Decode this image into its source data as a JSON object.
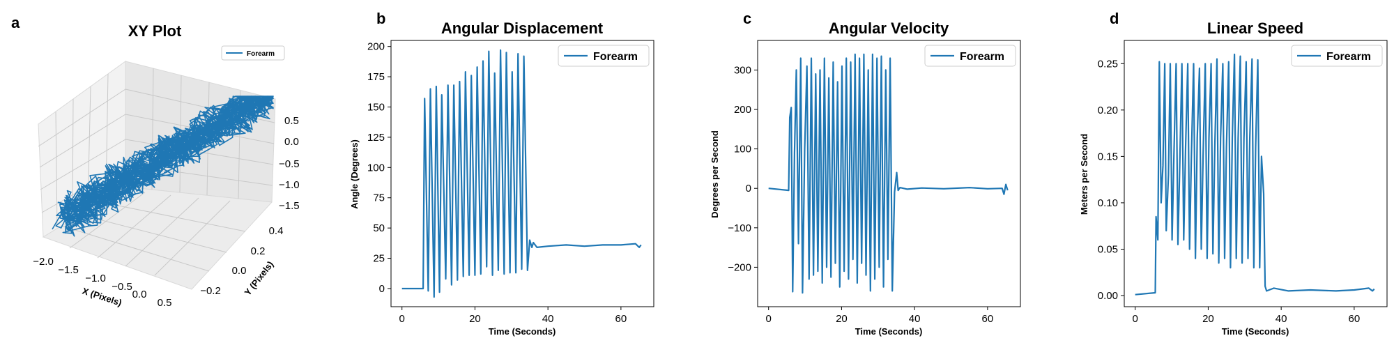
{
  "figure": {
    "accent": "#1f77b4"
  },
  "chart_data": [
    {
      "panel": "a",
      "type": "line",
      "projection": "3d",
      "title": "XY Plot",
      "xlabel": "X (Pixels)",
      "ylabel": "Y (Pixels)",
      "xticks": [
        "−2.0",
        "−1.5",
        "−1.0",
        "−0.5",
        "0.0",
        "0.5"
      ],
      "yticks": [
        "−0.2",
        "0.0",
        "0.2",
        "0.4"
      ],
      "zticks": [
        "0.5",
        "0.0",
        "−0.5",
        "−1.0",
        "−1.5"
      ],
      "xlim": [
        -2.2,
        0.8
      ],
      "ylim": [
        -0.3,
        0.5
      ],
      "zlim": [
        -1.6,
        0.8
      ],
      "legend": "top-right",
      "series": [
        {
          "name": "Forearm",
          "color": "#1f77b4",
          "description_range": {
            "x": [
              -2.0,
              0.6
            ],
            "y": [
              -0.25,
              0.45
            ],
            "z": [
              -1.5,
              0.8
            ]
          }
        }
      ]
    },
    {
      "panel": "b",
      "type": "line",
      "title": "Angular Displacement",
      "xlabel": "Time (Seconds)",
      "ylabel": "Angle (Degrees)",
      "xlim": [
        -3,
        69
      ],
      "ylim": [
        -15,
        205
      ],
      "xticks": [
        0,
        20,
        40,
        60
      ],
      "yticks": [
        0,
        25,
        50,
        75,
        100,
        125,
        150,
        175,
        200
      ],
      "legend": "top-right",
      "series": [
        {
          "name": "Forearm",
          "color": "#1f77b4",
          "x": [
            0,
            5.8,
            6.2,
            7.2,
            7.8,
            8.8,
            9.4,
            10.3,
            10.9,
            12,
            12.6,
            13.6,
            14.2,
            15.2,
            15.8,
            16.8,
            17.4,
            18.4,
            19,
            20,
            20.6,
            21.6,
            22.2,
            23.2,
            23.8,
            24.8,
            25.4,
            26.4,
            27,
            28,
            28.6,
            29.6,
            30.2,
            31.2,
            31.8,
            32.8,
            33.4,
            34.4,
            35,
            35.6,
            36,
            37,
            40,
            45,
            50,
            55,
            60,
            64,
            65,
            65.5
          ],
          "y": [
            0,
            0,
            157,
            -2,
            165,
            -7,
            167,
            -3,
            160,
            8,
            168,
            3,
            168,
            7,
            171,
            10,
            179,
            11,
            176,
            11,
            183,
            12,
            188,
            18,
            196,
            11,
            178,
            15,
            197,
            12,
            195,
            13,
            179,
            13,
            194,
            16,
            192,
            15,
            40,
            34,
            38,
            34,
            35,
            36,
            35,
            36,
            36,
            37,
            34,
            36
          ]
        }
      ]
    },
    {
      "panel": "c",
      "type": "line",
      "title": "Angular Velocity",
      "xlabel": "Time (Seconds)",
      "ylabel": "Degrees per Second",
      "xlim": [
        -3,
        69
      ],
      "ylim": [
        -300,
        375
      ],
      "xticks": [
        0,
        20,
        40,
        60
      ],
      "yticks": [
        -200,
        -100,
        0,
        100,
        200,
        300
      ],
      "legend": "top-right",
      "series": [
        {
          "name": "Forearm",
          "color": "#1f77b4",
          "x": [
            0,
            5.5,
            5.8,
            6.2,
            6.6,
            7.1,
            7.6,
            8.2,
            8.8,
            9.3,
            9.9,
            10.5,
            11.1,
            11.7,
            12.3,
            12.9,
            13.5,
            14.1,
            14.7,
            15.3,
            15.9,
            16.5,
            17.1,
            17.7,
            18.3,
            18.9,
            19.5,
            20.1,
            20.7,
            21.3,
            21.9,
            22.5,
            23.1,
            23.7,
            24.3,
            24.9,
            25.5,
            26.1,
            26.7,
            27.3,
            27.9,
            28.5,
            29.1,
            29.7,
            30.3,
            30.9,
            31.5,
            32.1,
            32.7,
            33.3,
            33.9,
            34.5,
            35.1,
            35.5,
            36,
            38,
            42,
            48,
            55,
            60,
            64,
            64.5,
            65,
            65.5
          ],
          "y": [
            0,
            -5,
            180,
            205,
            -262,
            90,
            300,
            -140,
            330,
            -265,
            100,
            310,
            -230,
            330,
            -220,
            290,
            -210,
            300,
            -240,
            330,
            -200,
            280,
            -225,
            320,
            -190,
            270,
            -250,
            310,
            -210,
            330,
            -230,
            320,
            -180,
            340,
            -240,
            330,
            -190,
            340,
            -220,
            300,
            -260,
            340,
            -230,
            330,
            -200,
            335,
            -250,
            300,
            -180,
            330,
            -260,
            -10,
            40,
            -5,
            2,
            -2,
            1,
            -1,
            2,
            -1,
            0,
            -15,
            10,
            -5
          ]
        }
      ]
    },
    {
      "panel": "d",
      "type": "line",
      "title": "Linear Speed",
      "xlabel": "Time (Seconds)",
      "ylabel": "Meters per Second",
      "xlim": [
        -3,
        69
      ],
      "ylim": [
        -0.012,
        0.275
      ],
      "xticks": [
        0,
        20,
        40,
        60
      ],
      "yticks": [
        "0.00",
        "0.05",
        "0.10",
        "0.15",
        "0.20",
        "0.25"
      ],
      "legend": "top-right",
      "series": [
        {
          "name": "Forearm",
          "color": "#1f77b4",
          "x": [
            0,
            5.5,
            5.7,
            6.2,
            6.6,
            7.1,
            7.6,
            8.1,
            8.5,
            9.1,
            9.6,
            10.1,
            10.6,
            11.2,
            11.7,
            12.2,
            12.8,
            13.3,
            13.8,
            14.4,
            14.9,
            15.4,
            16,
            16.5,
            17,
            17.6,
            18.1,
            18.6,
            19.2,
            19.7,
            20.2,
            20.8,
            21.3,
            21.8,
            22.4,
            22.9,
            23.4,
            24,
            24.5,
            25,
            25.6,
            26.1,
            26.6,
            27.2,
            27.7,
            28.2,
            28.8,
            29.3,
            29.8,
            30.4,
            30.9,
            31.4,
            32,
            32.5,
            33,
            33.6,
            34.1,
            34.6,
            35.2,
            35.6,
            36,
            38,
            42,
            48,
            55,
            60,
            64,
            65,
            65.5
          ],
          "y": [
            0.001,
            0.003,
            0.085,
            0.06,
            0.252,
            0.1,
            0.14,
            0.25,
            0.07,
            0.13,
            0.25,
            0.06,
            0.15,
            0.25,
            0.055,
            0.14,
            0.25,
            0.06,
            0.16,
            0.25,
            0.05,
            0.15,
            0.25,
            0.04,
            0.17,
            0.245,
            0.05,
            0.15,
            0.25,
            0.04,
            0.17,
            0.25,
            0.045,
            0.16,
            0.255,
            0.035,
            0.17,
            0.25,
            0.04,
            0.16,
            0.252,
            0.03,
            0.17,
            0.26,
            0.04,
            0.17,
            0.258,
            0.035,
            0.17,
            0.252,
            0.04,
            0.17,
            0.255,
            0.03,
            0.16,
            0.254,
            0.03,
            0.15,
            0.11,
            0.01,
            0.005,
            0.008,
            0.005,
            0.006,
            0.005,
            0.006,
            0.008,
            0.005,
            0.007
          ]
        }
      ]
    }
  ]
}
